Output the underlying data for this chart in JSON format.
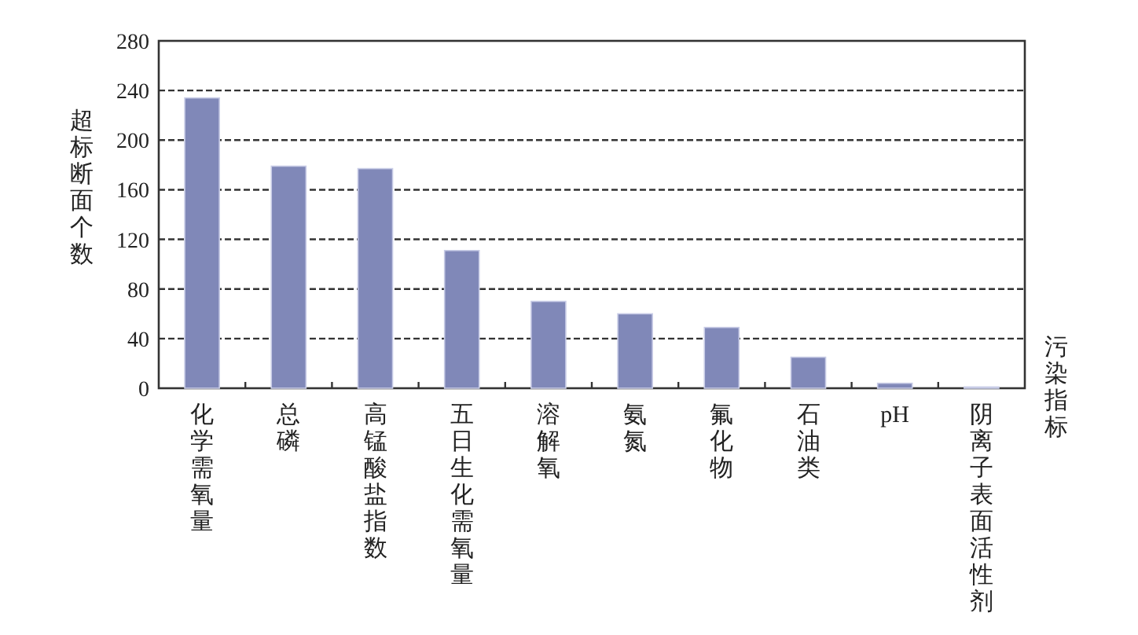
{
  "chart_data": {
    "type": "bar",
    "ylabel": "超标断面个数",
    "xlabel": "污染指标",
    "categories": [
      "化学需氧量",
      "总磷",
      "高锰酸盐指数",
      "五日生化需氧量",
      "溶解氧",
      "氨氮",
      "氟化物",
      "石油类",
      "pH",
      "阴离子表面活性剂"
    ],
    "values": [
      234,
      179,
      177,
      111,
      70,
      60,
      49,
      25,
      4,
      1
    ],
    "color": "#8088b8",
    "ylim": [
      0,
      280
    ],
    "yticks": [
      0,
      40,
      80,
      120,
      160,
      200,
      240,
      280
    ],
    "grid": "y"
  }
}
